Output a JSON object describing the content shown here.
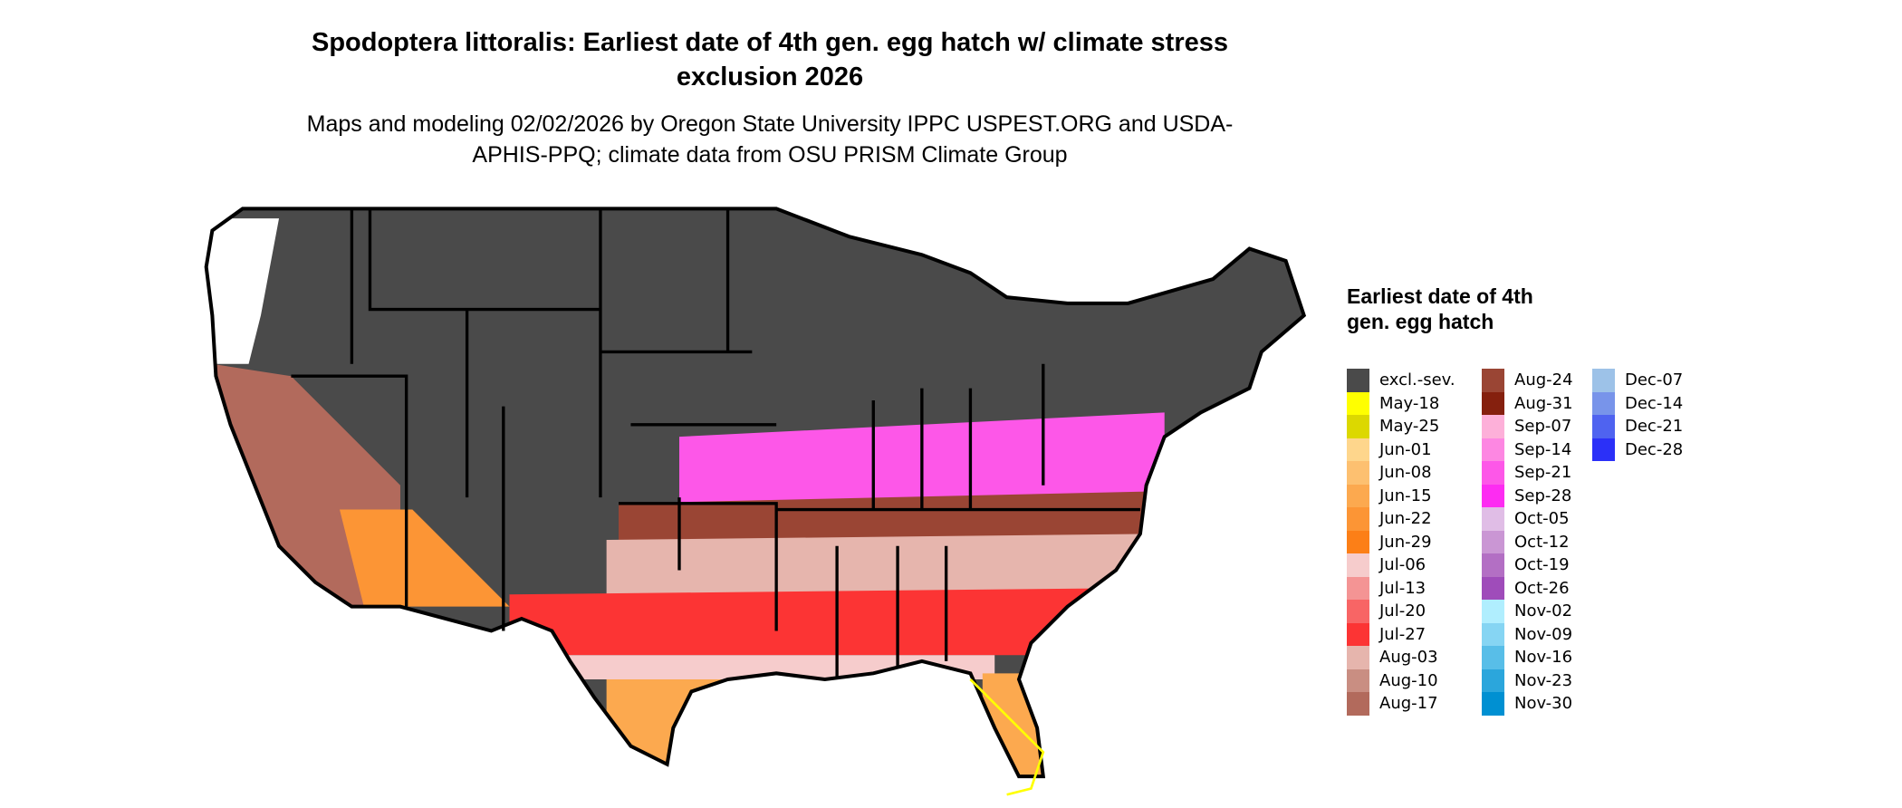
{
  "title": "Spodoptera littoralis: Earliest date of 4th gen. egg hatch w/ climate stress exclusion 2026",
  "subtitle": "Maps and modeling 02/02/2026 by Oregon State University IPPC USPEST.ORG and USDA-APHIS-PPQ; climate data from OSU PRISM Climate Group",
  "legend": {
    "title": "Earliest date of 4th gen. egg hatch",
    "columns": [
      [
        {
          "label": "excl.-sev.",
          "color": "#4a4a4a"
        },
        {
          "label": "May-18",
          "color": "#ffff00"
        },
        {
          "label": "May-25",
          "color": "#dcd800"
        },
        {
          "label": "Jun-01",
          "color": "#fed68c"
        },
        {
          "label": "Jun-08",
          "color": "#fdc070"
        },
        {
          "label": "Jun-15",
          "color": "#fca94f"
        },
        {
          "label": "Jun-22",
          "color": "#fc9535"
        },
        {
          "label": "Jun-29",
          "color": "#fc7f17"
        },
        {
          "label": "Jul-06",
          "color": "#f6cccc"
        },
        {
          "label": "Jul-13",
          "color": "#f49494"
        },
        {
          "label": "Jul-20",
          "color": "#f86565"
        },
        {
          "label": "Jul-27",
          "color": "#fc3434"
        },
        {
          "label": "Aug-03",
          "color": "#e6b5ad"
        },
        {
          "label": "Aug-10",
          "color": "#c98e82"
        },
        {
          "label": "Aug-17",
          "color": "#b26a5c"
        }
      ],
      [
        {
          "label": "Aug-24",
          "color": "#9a4534"
        },
        {
          "label": "Aug-31",
          "color": "#85200e"
        },
        {
          "label": "Sep-07",
          "color": "#fdb0d9"
        },
        {
          "label": "Sep-14",
          "color": "#fd87e2"
        },
        {
          "label": "Sep-21",
          "color": "#fd57e8"
        },
        {
          "label": "Sep-28",
          "color": "#fd2cf2"
        },
        {
          "label": "Oct-05",
          "color": "#e0bde6"
        },
        {
          "label": "Oct-12",
          "color": "#ca96d4"
        },
        {
          "label": "Oct-19",
          "color": "#b36fc4"
        },
        {
          "label": "Oct-26",
          "color": "#9f4cba"
        },
        {
          "label": "Nov-02",
          "color": "#b0eefe"
        },
        {
          "label": "Nov-09",
          "color": "#86d5f3"
        },
        {
          "label": "Nov-16",
          "color": "#58bee8"
        },
        {
          "label": "Nov-23",
          "color": "#2ba6dc"
        },
        {
          "label": "Nov-30",
          "color": "#0090d2"
        }
      ],
      [
        {
          "label": "Dec-07",
          "color": "#9dc2e8"
        },
        {
          "label": "Dec-14",
          "color": "#7894ea"
        },
        {
          "label": "Dec-21",
          "color": "#4f63f0"
        },
        {
          "label": "Dec-28",
          "color": "#2b30f8"
        }
      ]
    ]
  }
}
